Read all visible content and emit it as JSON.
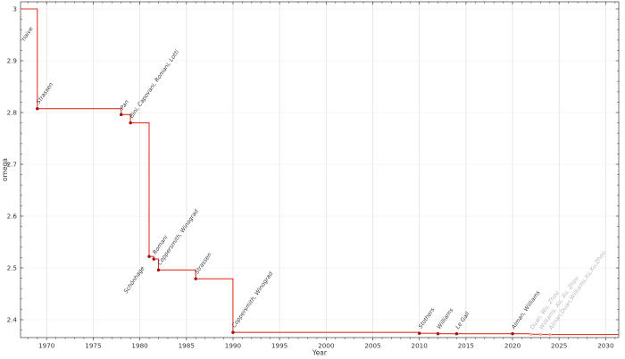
{
  "figure": {
    "background": "#ffffff"
  },
  "chart_data": {
    "type": "line",
    "subtype": "step-post",
    "title": "",
    "xlabel": "Year",
    "ylabel": "omega",
    "xlim": [
      1967.2,
      2031.4
    ],
    "ylim": [
      2.3655,
      3.0138
    ],
    "xticks": [
      1970,
      1975,
      1980,
      1985,
      1990,
      1995,
      2000,
      2005,
      2010,
      2015,
      2020,
      2025,
      2030
    ],
    "x_minor_step": 1,
    "yticks": [
      2.4,
      2.5,
      2.6,
      2.7,
      2.8,
      2.9,
      3
    ],
    "ytick_labels": [
      "2.4",
      "2.5",
      "2.6",
      "2.7",
      "2.8",
      "2.9",
      "3"
    ],
    "y_minor_step": 0.02,
    "grid": true,
    "legend": "none",
    "start": {
      "omega": 3,
      "label": "naive",
      "label_year": 1967.6,
      "label_omega": 2.938
    },
    "points": [
      {
        "year": 1969,
        "omega": 2.8074,
        "label": "Strassen"
      },
      {
        "year": 1978,
        "omega": 2.796,
        "label": "Pan"
      },
      {
        "year": 1979,
        "omega": 2.78,
        "label": "Bini, Capovani, Romani, Lotti"
      },
      {
        "year": 1981,
        "omega": 2.522,
        "label": "Schönhage",
        "label_align": "end",
        "label_dx": -5,
        "label_dy": 13
      },
      {
        "year": 1981.5,
        "omega": 2.517,
        "label": "Romani"
      },
      {
        "year": 1982,
        "omega": 2.496,
        "label": "Coppersmith, Winograd"
      },
      {
        "year": 1986,
        "omega": 2.479,
        "label": "Strassen"
      },
      {
        "year": 1990,
        "omega": 2.3755,
        "label": "Coppersmith, Winograd"
      },
      {
        "year": 2010,
        "omega": 2.3737,
        "label": "Stothers"
      },
      {
        "year": 2012,
        "omega": 2.3729,
        "label": "Williams"
      },
      {
        "year": 2014,
        "omega": 2.3728639,
        "label": "Le Gall"
      },
      {
        "year": 2020,
        "omega": 2.3728596,
        "label": "Alman, Williams"
      },
      {
        "year": 2022,
        "omega": 2.371866,
        "label": "Duan, Wu, Zhou",
        "faded": true
      },
      {
        "year": 2023,
        "omega": 2.371552,
        "label": "Williams, Xu, Xu, Zhou",
        "faded": true
      },
      {
        "year": 2024,
        "omega": 2.371339,
        "label": "Alman,Duan,Williams,Xu,Xu,Zhou",
        "faded": true
      }
    ]
  },
  "colors": {
    "line": "#e0392e",
    "marker": "#a01010",
    "marker_faded": "#f2a7a0",
    "label": "#3c3c3c",
    "label_faded": "#b7b7b7",
    "grid_vertical": "#e4e4e4",
    "grid_horizontal": "#f0f0f0",
    "axis": "#555555",
    "tick_label": "#333333"
  }
}
